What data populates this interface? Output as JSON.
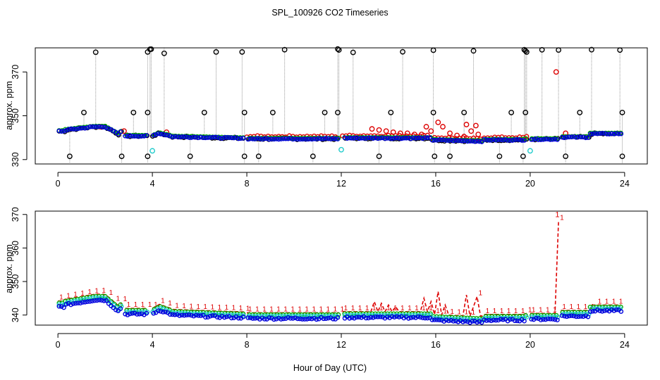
{
  "title": "SPL_100926  CO2 Timeseries",
  "xlabel": "Hour of Day (UTC)",
  "colors": {
    "raw": "#000000",
    "flagged": "#dd0000",
    "green_series": "#00aa00",
    "blue_series": "#0000dd",
    "cyan_series": "#22cccc",
    "needle": "#999999"
  },
  "chart_data": [
    {
      "type": "scatter",
      "panel": "top",
      "ylabel": "approx. ppm",
      "xlim": [
        -0.96,
        24.96
      ],
      "ylim": [
        328,
        381
      ],
      "xticks": [
        0,
        4,
        8,
        12,
        16,
        20,
        24
      ],
      "yticks": [
        330,
        350,
        370
      ],
      "series": [
        {
          "name": "raw",
          "marker": "open-circle",
          "color": "#000000"
        },
        {
          "name": "flagged",
          "marker": "open-circle",
          "color": "#dd0000"
        },
        {
          "name": "green",
          "marker": "open-circle",
          "color": "#00aa00"
        },
        {
          "name": "blue",
          "marker": "open-circle",
          "color": "#0000dd"
        },
        {
          "name": "cyan",
          "marker": "open-circle",
          "color": "#22cccc"
        }
      ],
      "spikes_high": [
        1.6,
        3.8,
        3.9,
        3.95,
        4.5,
        6.7,
        7.8,
        9.6,
        11.85,
        11.9,
        12.5,
        14.6,
        15.9,
        17.6,
        19.75,
        19.8,
        19.85,
        20.5,
        21.2,
        22.6,
        23.8
      ],
      "spikes_mid": [
        1.1,
        3.2,
        3.8,
        6.2,
        7.9,
        9.1,
        11.3,
        11.85,
        14.1,
        15.9,
        17.2,
        19.2,
        19.8,
        22.1,
        23.9
      ],
      "spikes_low": [
        0.5,
        2.7,
        3.8,
        5.6,
        7.9,
        8.5,
        10.8,
        13.6,
        15.95,
        16.6,
        18.7,
        19.7,
        21.5,
        23.9
      ],
      "flagged_points": [
        {
          "x": 13.3,
          "y": 344
        },
        {
          "x": 13.6,
          "y": 343.5
        },
        {
          "x": 13.9,
          "y": 343
        },
        {
          "x": 14.2,
          "y": 342.5
        },
        {
          "x": 14.5,
          "y": 342
        },
        {
          "x": 14.8,
          "y": 342
        },
        {
          "x": 15.1,
          "y": 341.5
        },
        {
          "x": 15.4,
          "y": 341.5
        },
        {
          "x": 15.6,
          "y": 345
        },
        {
          "x": 15.8,
          "y": 343
        },
        {
          "x": 16.1,
          "y": 347
        },
        {
          "x": 16.3,
          "y": 345
        },
        {
          "x": 16.6,
          "y": 342
        },
        {
          "x": 16.9,
          "y": 341
        },
        {
          "x": 17.2,
          "y": 340.5
        },
        {
          "x": 17.3,
          "y": 346
        },
        {
          "x": 17.5,
          "y": 343
        },
        {
          "x": 17.7,
          "y": 345.5
        },
        {
          "x": 17.8,
          "y": 341.5
        },
        {
          "x": 21.1,
          "y": 370
        },
        {
          "x": 21.5,
          "y": 342
        },
        {
          "x": 1.8,
          "y": 345
        },
        {
          "x": 2.8,
          "y": 343
        },
        {
          "x": 4.6,
          "y": 342.5
        }
      ],
      "cyan_points": [
        {
          "x": 4.0,
          "y": 334
        },
        {
          "x": 12.0,
          "y": 334.5
        },
        {
          "x": 20.0,
          "y": 334
        }
      ]
    },
    {
      "type": "line",
      "panel": "bottom",
      "ylabel": "approx. ppm",
      "xlim": [
        -0.96,
        24.96
      ],
      "ylim": [
        337,
        371
      ],
      "xticks": [
        0,
        4,
        8,
        12,
        16,
        20,
        24
      ],
      "yticks": [
        340,
        350,
        360,
        370
      ],
      "point_label": "1",
      "segments": [
        [
          0.0,
          2.75
        ],
        [
          2.85,
          3.8
        ],
        [
          4.0,
          7.9
        ],
        [
          8.0,
          11.9
        ],
        [
          12.05,
          19.85
        ],
        [
          20.0,
          21.2
        ],
        [
          21.3,
          23.9
        ]
      ],
      "spikes": [
        {
          "x": 21.15,
          "y": 368
        },
        {
          "x": 15.55,
          "y": 345
        },
        {
          "x": 15.85,
          "y": 344
        },
        {
          "x": 16.1,
          "y": 347
        },
        {
          "x": 16.35,
          "y": 343
        },
        {
          "x": 17.3,
          "y": 346
        },
        {
          "x": 17.55,
          "y": 342.5
        },
        {
          "x": 17.75,
          "y": 345.5
        },
        {
          "x": 13.4,
          "y": 344
        },
        {
          "x": 13.7,
          "y": 343.5
        },
        {
          "x": 14.0,
          "y": 343
        },
        {
          "x": 14.3,
          "y": 342.5
        }
      ],
      "series": [
        {
          "name": "flagged",
          "marker": "1",
          "color": "#dd0000"
        },
        {
          "name": "green",
          "marker": "open-circle",
          "color": "#00aa00"
        },
        {
          "name": "cyan",
          "marker": "open-circle",
          "color": "#22cccc"
        },
        {
          "name": "blue",
          "marker": "open-circle",
          "color": "#0000dd"
        }
      ]
    }
  ]
}
